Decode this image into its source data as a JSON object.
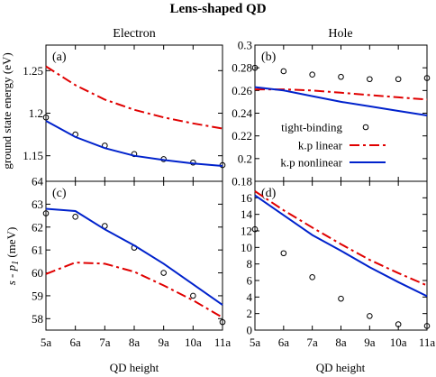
{
  "title": "Lens-shaped QD",
  "columns": [
    "Electron",
    "Hole"
  ],
  "y_labels": {
    "top": "ground state energy (eV)",
    "bottom_prefix": "s - p",
    "bottom_subscript": "1",
    "bottom_suffix": " (meV)"
  },
  "x_label": "QD height",
  "legend": [
    "tight-binding",
    "k.p linear",
    "k.p nonlinear"
  ],
  "colors": {
    "tb": "#000000",
    "kp_linear": "#e00000",
    "kp_nonlinear": "#0022cc"
  },
  "chart_data": [
    {
      "panel": "(a)",
      "type": "line",
      "x": [
        "5a",
        "6a",
        "7a",
        "8a",
        "9a",
        "10a",
        "11a"
      ],
      "ylim": [
        1.12,
        1.28
      ],
      "yticks": [
        1.15,
        1.2,
        1.25
      ],
      "ytick_labels": [
        "1.15",
        "1.2",
        "1.25"
      ],
      "series": [
        {
          "name": "tight-binding",
          "style": "points",
          "values": [
            1.195,
            1.175,
            1.162,
            1.152,
            1.146,
            1.142,
            1.139
          ]
        },
        {
          "name": "k.p linear",
          "style": "dashdot",
          "values": [
            1.255,
            1.233,
            1.216,
            1.204,
            1.195,
            1.188,
            1.182
          ]
        },
        {
          "name": "k.p nonlinear",
          "style": "solid",
          "values": [
            1.191,
            1.172,
            1.159,
            1.15,
            1.145,
            1.141,
            1.138
          ]
        }
      ]
    },
    {
      "panel": "(b)",
      "type": "line",
      "x": [
        "5a",
        "6a",
        "7a",
        "8a",
        "9a",
        "10a",
        "11a"
      ],
      "ylim": [
        0.18,
        0.3
      ],
      "yticks": [
        0.18,
        0.2,
        0.22,
        0.24,
        0.26,
        0.28,
        0.3
      ],
      "ytick_labels": [
        "0.18",
        "0.2",
        "0.22",
        "0.24",
        "0.26",
        "0.28",
        "0.3"
      ],
      "series": [
        {
          "name": "tight-binding",
          "style": "points",
          "values": [
            0.28,
            0.277,
            0.274,
            0.272,
            0.27,
            0.27,
            0.271
          ]
        },
        {
          "name": "k.p linear",
          "style": "dashdot",
          "values": [
            0.261,
            0.261,
            0.26,
            0.258,
            0.256,
            0.254,
            0.252
          ]
        },
        {
          "name": "k.p nonlinear",
          "style": "solid",
          "values": [
            0.263,
            0.26,
            0.255,
            0.25,
            0.246,
            0.242,
            0.238
          ]
        }
      ]
    },
    {
      "panel": "(c)",
      "type": "line",
      "x": [
        "5a",
        "6a",
        "7a",
        "8a",
        "9a",
        "10a",
        "11a"
      ],
      "ylim": [
        57.5,
        64
      ],
      "yticks": [
        58,
        59,
        60,
        61,
        62,
        63,
        64
      ],
      "ytick_labels": [
        "58",
        "59",
        "60",
        "61",
        "62",
        "63",
        "64"
      ],
      "series": [
        {
          "name": "tight-binding",
          "style": "points",
          "values": [
            62.6,
            62.45,
            62.05,
            61.1,
            60.0,
            59.0,
            57.85
          ]
        },
        {
          "name": "k.p linear",
          "style": "dashdot",
          "values": [
            59.95,
            60.45,
            60.4,
            60.05,
            59.45,
            58.8,
            58.05
          ]
        },
        {
          "name": "k.p nonlinear",
          "style": "solid",
          "values": [
            62.8,
            62.7,
            61.9,
            61.2,
            60.4,
            59.5,
            58.6
          ]
        }
      ]
    },
    {
      "panel": "(d)",
      "type": "line",
      "x": [
        "5a",
        "6a",
        "7a",
        "8a",
        "9a",
        "10a",
        "11a"
      ],
      "ylim": [
        0,
        18
      ],
      "yticks": [
        0,
        2,
        4,
        6,
        8,
        10,
        12,
        14,
        16
      ],
      "ytick_labels": [
        "0",
        "2",
        "4",
        "6",
        "8",
        "10",
        "12",
        "14",
        "16"
      ],
      "series": [
        {
          "name": "tight-binding",
          "style": "points",
          "values": [
            12.2,
            9.3,
            6.4,
            3.8,
            1.7,
            0.7,
            0.5
          ]
        },
        {
          "name": "k.p linear",
          "style": "dashdot",
          "values": [
            16.8,
            14.5,
            12.4,
            10.4,
            8.5,
            6.9,
            5.4
          ]
        },
        {
          "name": "k.p nonlinear",
          "style": "solid",
          "values": [
            16.3,
            13.9,
            11.5,
            9.6,
            7.6,
            5.8,
            4.1
          ]
        }
      ]
    }
  ]
}
